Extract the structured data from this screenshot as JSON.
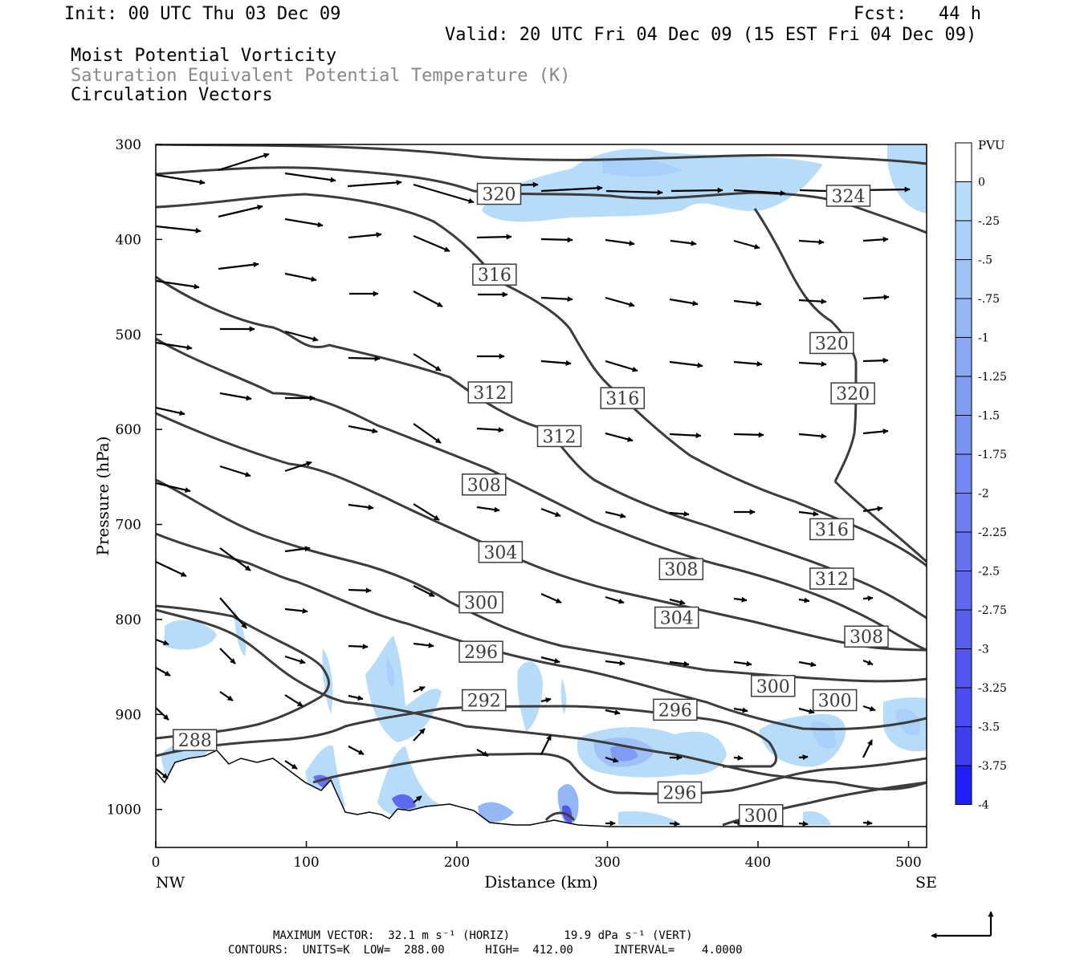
{
  "header": {
    "init": "Init: 00 UTC Thu 03 Dec 09",
    "fcst": "Fcst:   44 h",
    "valid": "Valid: 20 UTC Fri 04 Dec 09 (15 EST Fri 04 Dec 09)",
    "field1": "Moist Potential Vorticity",
    "field2": "Saturation Equivalent Potential Temperature (K)",
    "field3": "Circulation Vectors"
  },
  "colors": {
    "contour": "#3c3c3c",
    "pv_fill_light": "#b7dcfa",
    "pv_fill_mid": "#93b6f5",
    "pv_fill_dark": "#4a50ee"
  },
  "chart_data": {
    "type": "cross-section",
    "xlabel": "Distance (km)",
    "ylabel": "Pressure (hPa)",
    "xlim": [
      0,
      512
    ],
    "ylim": [
      1040,
      300
    ],
    "xticks": [
      0,
      100,
      200,
      300,
      400,
      500
    ],
    "yticks": [
      300,
      400,
      500,
      600,
      700,
      800,
      900,
      1000
    ],
    "left_end_label": "NW",
    "right_end_label": "SE",
    "colorbar": {
      "title": "PVU",
      "levels": [
        "0",
        "-.25",
        "-.5",
        "-.75",
        "-1",
        "-1.25",
        "-1.5",
        "-1.75",
        "-2",
        "-2.25",
        "-2.5",
        "-2.75",
        "-3",
        "-3.25",
        "-3.5",
        "-3.75",
        "-4"
      ],
      "colors": [
        "#ffffff",
        "#b7dcfa",
        "#a9d0fa",
        "#9ec2f7",
        "#93b6f5",
        "#89a9f3",
        "#809cf2",
        "#7a93f1",
        "#7488f1",
        "#6c7df0",
        "#6673f0",
        "#5f69ef",
        "#585fef",
        "#5256ee",
        "#4a4def",
        "#3d3ff2",
        "#1f1ff8"
      ]
    },
    "contour_labels": [
      {
        "text": "320",
        "x": 228,
        "p": 352
      },
      {
        "text": "324",
        "x": 460,
        "p": 354
      },
      {
        "text": "316",
        "x": 225,
        "p": 437
      },
      {
        "text": "320",
        "x": 449,
        "p": 509
      },
      {
        "text": "320",
        "x": 463,
        "p": 562
      },
      {
        "text": "316",
        "x": 310,
        "p": 567
      },
      {
        "text": "312",
        "x": 222,
        "p": 561
      },
      {
        "text": "312",
        "x": 268,
        "p": 607
      },
      {
        "text": "308",
        "x": 218,
        "p": 658
      },
      {
        "text": "316",
        "x": 449,
        "p": 705
      },
      {
        "text": "304",
        "x": 229,
        "p": 729
      },
      {
        "text": "308",
        "x": 349,
        "p": 747
      },
      {
        "text": "312",
        "x": 449,
        "p": 757
      },
      {
        "text": "300",
        "x": 216,
        "p": 782
      },
      {
        "text": "304",
        "x": 346,
        "p": 798
      },
      {
        "text": "308",
        "x": 472,
        "p": 818
      },
      {
        "text": "296",
        "x": 216,
        "p": 834
      },
      {
        "text": "300",
        "x": 410,
        "p": 870
      },
      {
        "text": "292",
        "x": 218,
        "p": 885
      },
      {
        "text": "300",
        "x": 451,
        "p": 885
      },
      {
        "text": "296",
        "x": 345,
        "p": 895
      },
      {
        "text": "288",
        "x": 26,
        "p": 927
      },
      {
        "text": "296",
        "x": 348,
        "p": 982
      },
      {
        "text": "300",
        "x": 402,
        "p": 1006
      }
    ]
  },
  "footer": {
    "max_vector": "MAXIMUM VECTOR:  32.1 m s⁻¹ (HORIZ)        19.9 dPa s⁻¹ (VERT)",
    "contours": "CONTOURS:  UNITS=K  LOW=  288.00      HIGH=  412.00      INTERVAL=    4.0000"
  }
}
